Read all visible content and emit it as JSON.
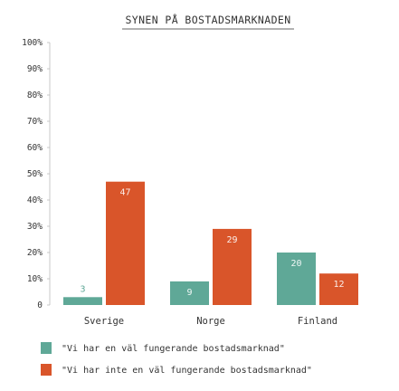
{
  "chart_data": {
    "type": "bar",
    "title": "SYNEN PÅ BOSTADSMARKNADEN",
    "categories": [
      "Sverige",
      "Norge",
      "Finland"
    ],
    "series": [
      {
        "name": "\"Vi har en väl fungerande bostadsmarknad\"",
        "values": [
          3,
          9,
          20
        ],
        "color": "#5fa897"
      },
      {
        "name": "\"Vi har inte en väl fungerande bostadsmarknad\"",
        "values": [
          47,
          29,
          12
        ],
        "color": "#d9552a"
      }
    ],
    "y_ticks": [
      "0",
      "10%",
      "20%",
      "30%",
      "40%",
      "50%",
      "60%",
      "70%",
      "80%",
      "90%",
      "100%"
    ],
    "ylim": [
      0,
      100
    ],
    "grid": false,
    "legend_position": "bottom-left",
    "title_underline": true
  }
}
